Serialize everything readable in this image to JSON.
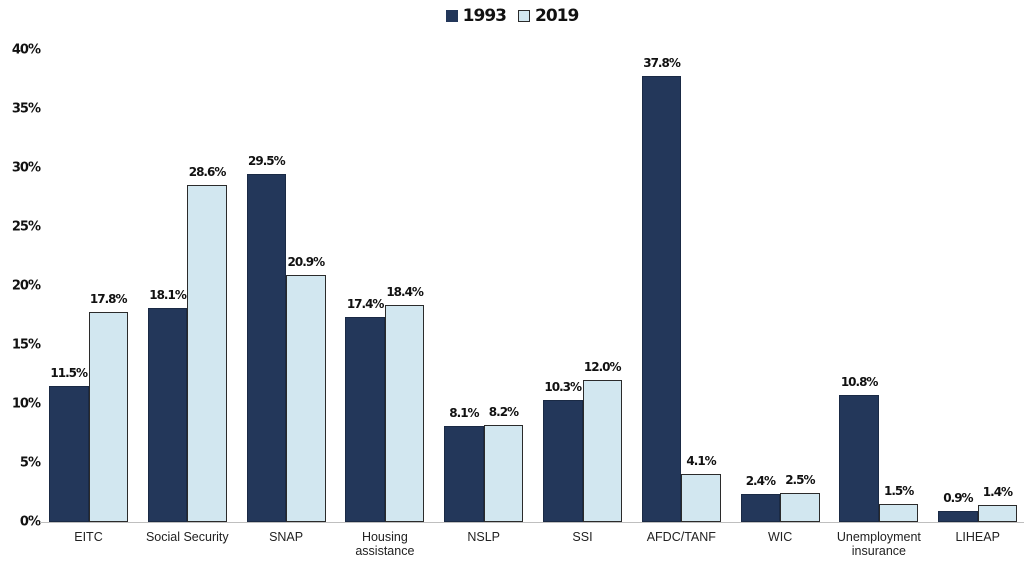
{
  "chart_data": {
    "type": "bar",
    "title": "",
    "xlabel": "",
    "ylabel": "",
    "ylim": [
      0,
      40
    ],
    "yticks": [
      "0%",
      "5%",
      "10%",
      "15%",
      "20%",
      "25%",
      "30%",
      "35%",
      "40%"
    ],
    "grid": false,
    "legend_position": "top-center",
    "categories": [
      "EITC",
      "Social Security",
      "SNAP",
      "Housing assistance",
      "NSLP",
      "SSI",
      "AFDC/TANF",
      "WIC",
      "Unemployment insurance",
      "LIHEAP"
    ],
    "category_lines": [
      [
        "EITC"
      ],
      [
        "Social Security"
      ],
      [
        "SNAP"
      ],
      [
        "Housing",
        "assistance"
      ],
      [
        "NSLP"
      ],
      [
        "SSI"
      ],
      [
        "AFDC/TANF"
      ],
      [
        "WIC"
      ],
      [
        "Unemployment",
        "insurance"
      ],
      [
        "LIHEAP"
      ]
    ],
    "series": [
      {
        "name": "1993",
        "color": "#23375a",
        "values": [
          11.5,
          18.1,
          29.5,
          17.4,
          8.1,
          10.3,
          37.8,
          2.4,
          10.8,
          0.9
        ],
        "labels": [
          "11.5%",
          "18.1%",
          "29.5%",
          "17.4%",
          "8.1%",
          "10.3%",
          "37.8%",
          "2.4%",
          "10.8%",
          "0.9%"
        ]
      },
      {
        "name": "2019",
        "color": "#d2e7f0",
        "values": [
          17.8,
          28.6,
          20.9,
          18.4,
          8.2,
          12.0,
          4.1,
          2.5,
          1.5,
          1.4
        ],
        "labels": [
          "17.8%",
          "28.6%",
          "20.9%",
          "18.4%",
          "8.2%",
          "12.0%",
          "4.1%",
          "2.5%",
          "1.5%",
          "1.4%"
        ]
      }
    ]
  },
  "legend": {
    "items": [
      {
        "label": "1993",
        "color": "#23375a"
      },
      {
        "label": "2019",
        "color": "#d2e7f0"
      }
    ]
  }
}
